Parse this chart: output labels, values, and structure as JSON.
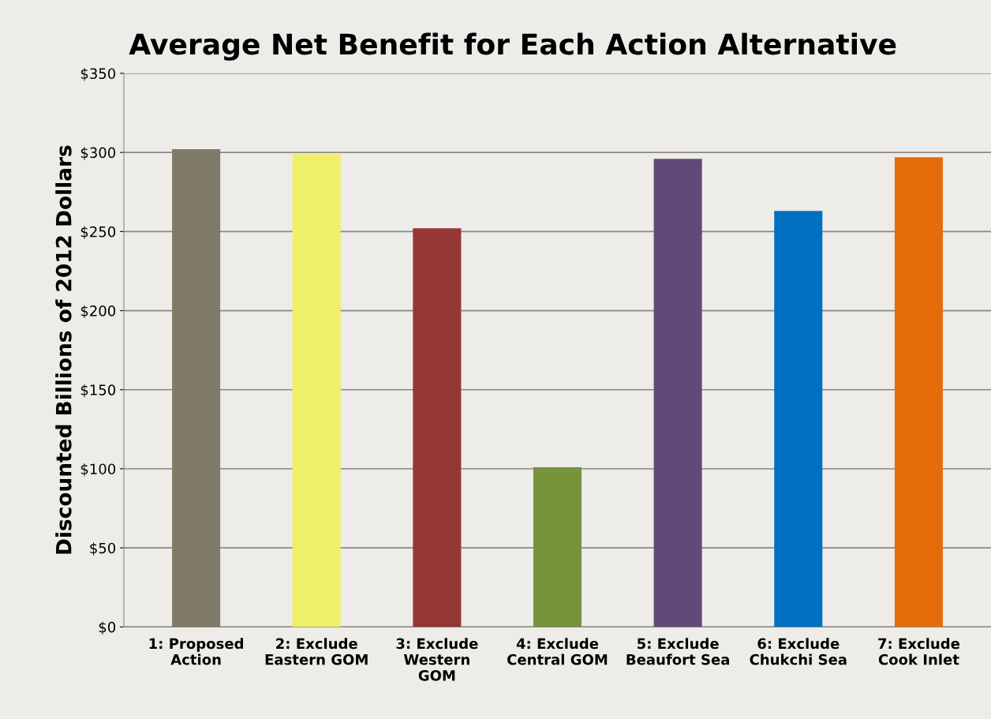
{
  "chart_data": {
    "type": "bar",
    "title": "Average Net Benefit for Each Action Alternative",
    "ylabel": "Discounted Billions of 2012 Dollars",
    "categories": [
      "1: Proposed\nAction",
      "2: Exclude\nEastern GOM",
      "3: Exclude\nWestern\nGOM",
      "4: Exclude\nCentral GOM",
      "5: Exclude\nBeaufort Sea",
      "6: Exclude\nChukchi Sea",
      "7: Exclude\nCook Inlet"
    ],
    "values": [
      302,
      299,
      252,
      101,
      296,
      263,
      297
    ],
    "colors": [
      "#807b68",
      "#f0ef6a",
      "#953735",
      "#77933c",
      "#604a7b",
      "#0070c0",
      "#e46c0a"
    ],
    "ylim": [
      0,
      350
    ],
    "yticks": [
      {
        "value": 0,
        "label": "$0"
      },
      {
        "value": 50,
        "label": "$50"
      },
      {
        "value": 100,
        "label": "$100"
      },
      {
        "value": 150,
        "label": "$150"
      },
      {
        "value": 200,
        "label": "$200"
      },
      {
        "value": 250,
        "label": "$250"
      },
      {
        "value": 300,
        "label": "$300"
      },
      {
        "value": 350,
        "label": "$350"
      }
    ],
    "grid": "y"
  }
}
